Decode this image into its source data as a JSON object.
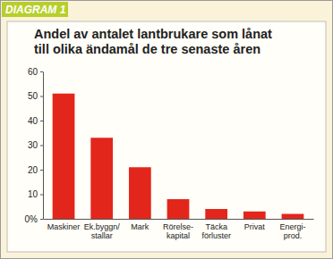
{
  "chart_data": {
    "type": "bar",
    "title": "Andel av antalet lantbrukare som lånat\ntill olika ändamål de tre senaste åren",
    "annotations": [
      "DIAGRAM 1"
    ],
    "categories": [
      "Maskiner",
      "Ek.byggn/\nstallar",
      "Mark",
      "Rörelse-\nkapital",
      "Täcka\nförluster",
      "Privat",
      "Energi-\nprod."
    ],
    "values": [
      51,
      33,
      21,
      8,
      4,
      3,
      2
    ],
    "color": "#e3261c",
    "ylim": [
      0,
      60
    ],
    "yticks": [
      {
        "value": 0,
        "label": "0%"
      },
      10,
      20,
      30,
      40,
      50,
      60
    ],
    "grid": false
  }
}
